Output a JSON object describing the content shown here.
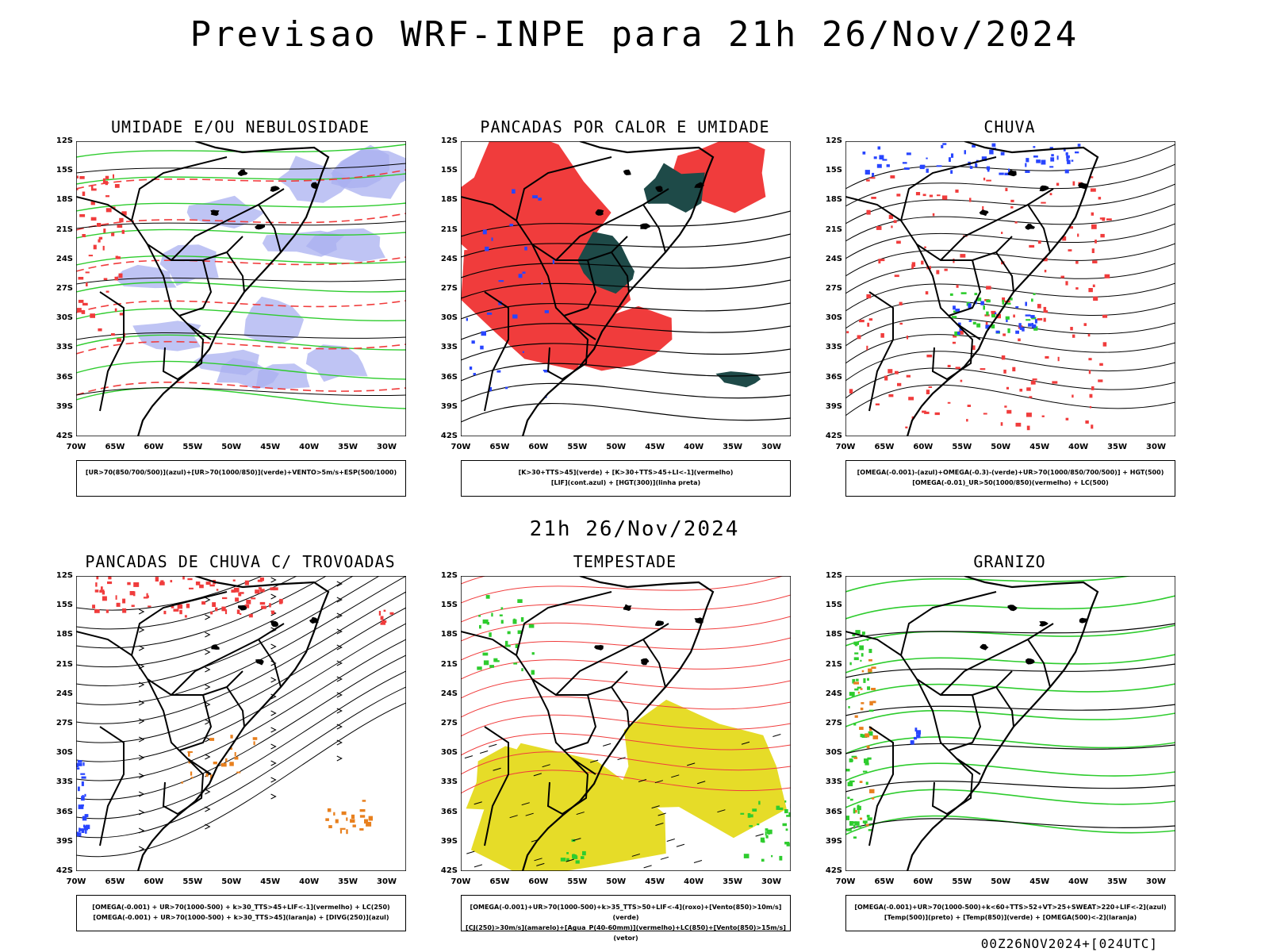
{
  "title": "Previsao WRF-INPE  para 21h 26/Nov/2024",
  "mid_date": "21h 26/Nov/2024",
  "footer": "00Z26NOV2024+[024UTC]",
  "lat_labels": [
    "12S",
    "15S",
    "18S",
    "21S",
    "24S",
    "27S",
    "30S",
    "33S",
    "36S",
    "39S",
    "42S"
  ],
  "lon_labels": [
    "70W",
    "65W",
    "60W",
    "55W",
    "50W",
    "45W",
    "40W",
    "35W",
    "30W"
  ],
  "colors": {
    "red": "#f03c3c",
    "green": "#2ecc2e",
    "blue": "#2845ff",
    "lavender": "#aab0f0",
    "darkteal": "#1e4a48",
    "yellow": "#e6dc28",
    "orange": "#e8801e"
  },
  "panels": [
    {
      "title": "UMIDADE E/OU NEBULOSIDADE",
      "theme": "humidity",
      "legend": [
        "[UR>70(850/700/500)](azul)+[UR>70(1000/850)](verde)+VENTO>5m/s+ESP(500/1000)"
      ]
    },
    {
      "title": "PANCADAS POR CALOR E UMIDADE",
      "theme": "heat",
      "legend": [
        "[K>30+TTS>45](verde) + [K>30+TTS>45+LI<-1](vermelho)",
        "[LIF](cont.azul) + [HGT(300)](linha preta)"
      ]
    },
    {
      "title": "CHUVA",
      "theme": "rain",
      "legend": [
        "[OMEGA(-0.001)-(azul)+OMEGA(-0.3)-(verde)+UR>70(1000/850/700/500)] + HGT(500)",
        "[OMEGA(-0.01)_UR>50(1000/850)(vermelho) + LC(500)"
      ]
    },
    {
      "title": "PANCADAS DE CHUVA C/ TROVOADAS",
      "theme": "storms",
      "legend": [
        "[OMEGA(-0.001) + UR>70(1000-500) + k>30_TTS>45+LIF<-1](vermelho) + LC(250)",
        "[OMEGA(-0.001) + UR>70(1000-500) + k>30_TTS>45](laranja) + [DIVG(250)](azul)"
      ]
    },
    {
      "title": "TEMPESTADE",
      "theme": "tempest",
      "legend": [
        "[OMEGA(-0.001)+UR>70(1000-500)+k>35_TTS>50+LIF<-4](roxo)+[Vento(850)>10m/s](verde)",
        "[CJ(250)>30m/s](amarelo)+[Agua_P(40-60mm)](vermelho)+LC(850)+[Vento(850)>15m/s](vetor)"
      ]
    },
    {
      "title": "GRANIZO",
      "theme": "hail",
      "legend": [
        "[OMEGA(-0.001)+UR>70(1000-500)+k<60+TTS>52+VT>25+SWEAT>220+LIF<-2](azul)",
        "[Temp(500)](preto) + [Temp(850)](verde) + [OMEGA(500)<-2](laranja)"
      ]
    }
  ]
}
